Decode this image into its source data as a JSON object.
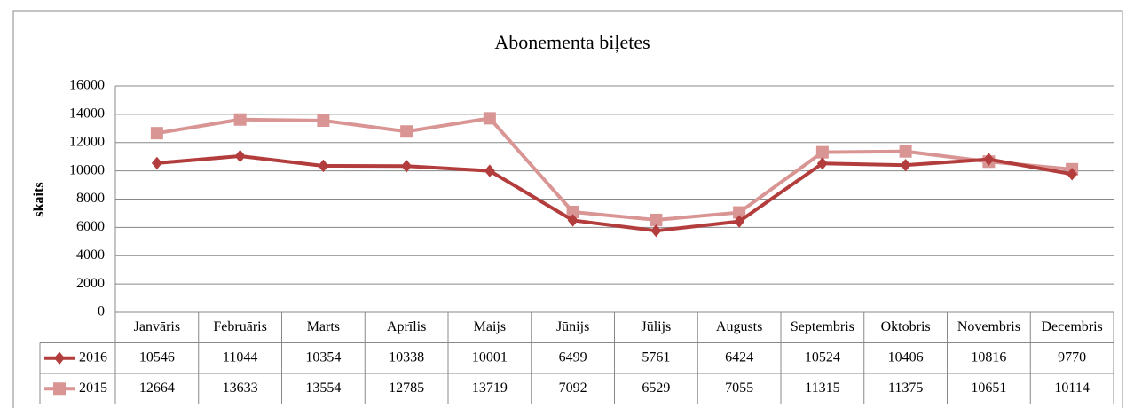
{
  "chart_data": {
    "type": "line",
    "title": "Abonementa biļetes",
    "y_label": "skaits",
    "categories": [
      "Janvāris",
      "Februāris",
      "Marts",
      "Aprīlis",
      "Maijs",
      "Jūnijs",
      "Jūlijs",
      "Augusts",
      "Septembris",
      "Oktobris",
      "Novembris",
      "Decembris"
    ],
    "series": [
      {
        "name": "2016",
        "color": "#b33d3d",
        "marker": "diamond",
        "values": [
          10546,
          11044,
          10354,
          10338,
          10001,
          6499,
          5761,
          6424,
          10524,
          10406,
          10816,
          9770
        ]
      },
      {
        "name": "2015",
        "color": "#d99594",
        "marker": "square",
        "values": [
          12664,
          13633,
          13554,
          12785,
          13719,
          7092,
          6529,
          7055,
          11315,
          11375,
          10651,
          10114
        ]
      }
    ],
    "ylim": [
      0,
      16000
    ],
    "yticks": [
      0,
      2000,
      4000,
      6000,
      8000,
      10000,
      12000,
      14000,
      16000
    ],
    "grid": true,
    "data_table": true
  }
}
